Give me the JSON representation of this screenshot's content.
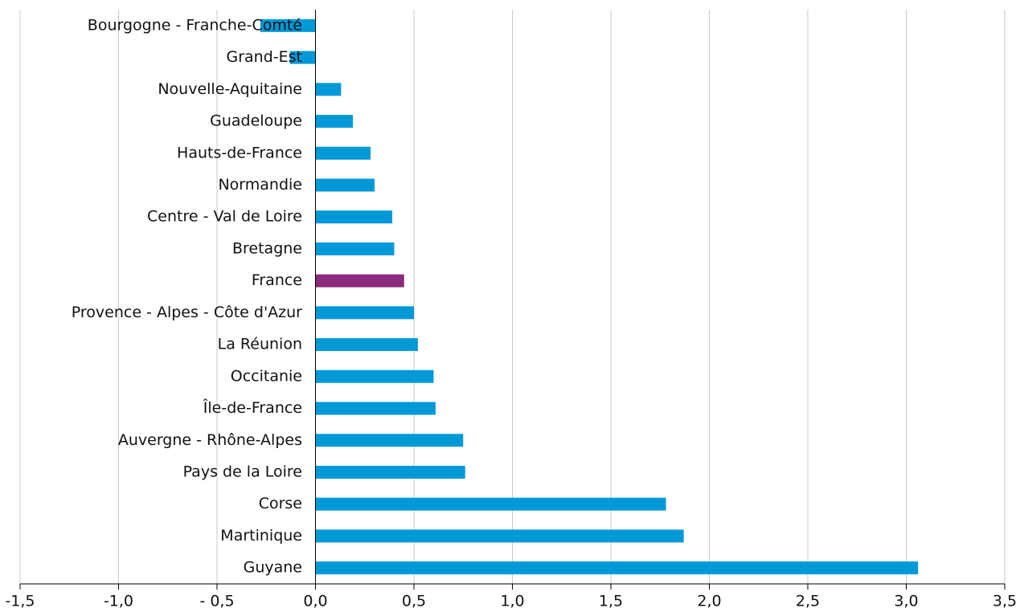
{
  "chart_data": {
    "type": "barh",
    "categories": [
      "Bourgogne - Franche-Comté",
      "Grand-Est",
      "Nouvelle-Aquitaine",
      "Guadeloupe",
      "Hauts-de-France",
      "Normandie",
      "Centre - Val de Loire",
      "Bretagne",
      "France",
      "Provence - Alpes - Côte d'Azur",
      "La Réunion",
      "Occitanie",
      "Île-de-France",
      "Auvergne - Rhône-Alpes",
      "Pays de la Loire",
      "Corse",
      "Martinique",
      "Guyane"
    ],
    "values": [
      -0.28,
      -0.13,
      0.13,
      0.19,
      0.28,
      0.3,
      0.39,
      0.4,
      0.45,
      0.5,
      0.52,
      0.6,
      0.61,
      0.75,
      0.76,
      1.78,
      1.87,
      3.06
    ],
    "colors": [
      "#0099d8",
      "#0099d8",
      "#0099d8",
      "#0099d8",
      "#0099d8",
      "#0099d8",
      "#0099d8",
      "#0099d8",
      "#8b2a7e",
      "#0099d8",
      "#0099d8",
      "#0099d8",
      "#0099d8",
      "#0099d8",
      "#0099d8",
      "#0099d8",
      "#0099d8",
      "#0099d8"
    ],
    "xlim": [
      -1.5,
      3.5
    ],
    "xticks": [
      {
        "value": -1.5,
        "label": "-1,5"
      },
      {
        "value": -1.0,
        "label": "-1,0"
      },
      {
        "value": -0.5,
        "label": "- 0,5"
      },
      {
        "value": 0,
        "label": "0,0"
      },
      {
        "value": 0.5,
        "label": "0,5"
      },
      {
        "value": 1.0,
        "label": "1,0"
      },
      {
        "value": 1.5,
        "label": "1,5"
      },
      {
        "value": 2.0,
        "label": "2,0"
      },
      {
        "value": 2.5,
        "label": "2,5"
      },
      {
        "value": 3.0,
        "label": "3,0"
      },
      {
        "value": 3.5,
        "label": "3,5"
      }
    ],
    "grid": true
  }
}
